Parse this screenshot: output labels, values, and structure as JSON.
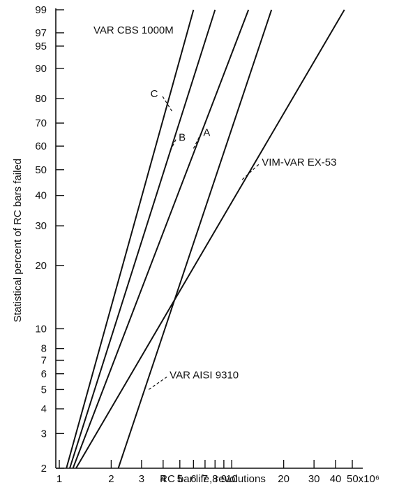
{
  "chart_data": {
    "type": "line",
    "title": "",
    "xlabel": "RC bar life, revolutions",
    "ylabel": "Statistical percent of RC bars failed",
    "x_scale": "log",
    "y_scale": "weibull",
    "xlim": [
      1,
      50
    ],
    "ylim": [
      2,
      99
    ],
    "x_ticks": [
      1,
      2,
      3,
      4,
      5,
      6,
      7,
      8,
      9,
      10,
      20,
      30,
      40,
      50
    ],
    "x_tick_labels": [
      "1",
      "2",
      "3",
      "4",
      "5",
      "6",
      "7",
      "8",
      "9",
      "10",
      "20",
      "30",
      "40",
      "50x10⁶"
    ],
    "y_ticks": [
      2,
      3,
      4,
      5,
      6,
      7,
      8,
      10,
      20,
      30,
      40,
      50,
      60,
      70,
      80,
      90,
      95,
      97,
      99
    ],
    "y_tick_labels": [
      "2",
      "3",
      "4",
      "5",
      "6",
      "7",
      "8",
      "10",
      "20",
      "30",
      "40",
      "50",
      "60",
      "70",
      "80",
      "90",
      "95",
      "97",
      "99"
    ],
    "grid": false,
    "annotations": [
      "VAR CBS 1000M"
    ],
    "series": [
      {
        "name": "C",
        "x": [
          1.1,
          6.0
        ],
        "y": [
          2,
          99
        ],
        "label_at": [
          4.5,
          75
        ]
      },
      {
        "name": "B",
        "x": [
          1.15,
          8.0
        ],
        "y": [
          2,
          99
        ],
        "label_at": [
          4.4,
          58
        ]
      },
      {
        "name": "A",
        "x": [
          1.2,
          12.5
        ],
        "y": [
          2,
          99
        ],
        "label_at": [
          6.0,
          59
        ]
      },
      {
        "name": "VAR AISI 9310",
        "x": [
          2.2,
          17.0
        ],
        "y": [
          2,
          99
        ],
        "label_at": [
          3.3,
          5
        ]
      },
      {
        "name": "VIM-VAR EX-53",
        "x": [
          1.25,
          45.0
        ],
        "y": [
          2,
          99
        ],
        "label_at": [
          11.5,
          46
        ]
      }
    ]
  }
}
